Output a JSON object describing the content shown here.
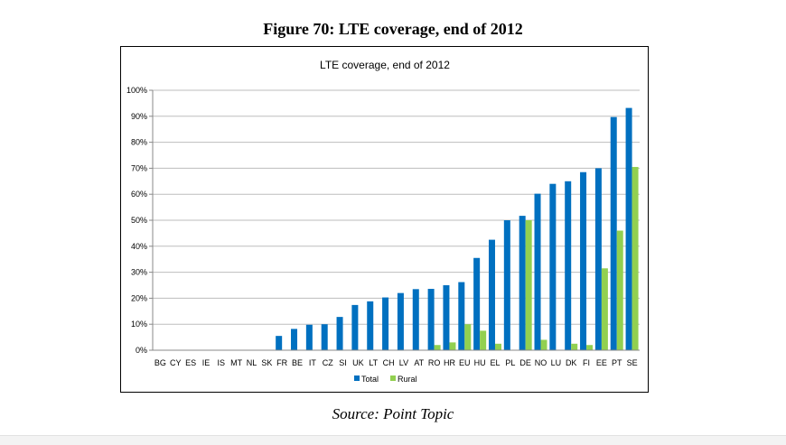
{
  "figure_title": "Figure 70: LTE coverage, end of 2012",
  "source": "Source: Point Topic",
  "chart_data": {
    "type": "bar",
    "title": "LTE coverage, end of 2012",
    "xlabel": "",
    "ylabel": "",
    "ylim": [
      0,
      100
    ],
    "y_ticks": [
      "0%",
      "10%",
      "20%",
      "30%",
      "40%",
      "50%",
      "60%",
      "70%",
      "80%",
      "90%",
      "100%"
    ],
    "grid": true,
    "legend_position": "bottom",
    "categories": [
      "BG",
      "CY",
      "ES",
      "IE",
      "IS",
      "MT",
      "NL",
      "SK",
      "FR",
      "BE",
      "IT",
      "CZ",
      "SI",
      "UK",
      "LT",
      "CH",
      "LV",
      "AT",
      "RO",
      "HR",
      "EU",
      "HU",
      "EL",
      "PL",
      "DE",
      "NO",
      "LU",
      "DK",
      "FI",
      "EE",
      "PT",
      "SE"
    ],
    "series": [
      {
        "name": "Total",
        "color": "#0070c0",
        "values": [
          0,
          0,
          0,
          0,
          0,
          0,
          0,
          0,
          5.5,
          8.2,
          9.8,
          10.0,
          12.8,
          17.4,
          18.8,
          20.3,
          22.0,
          23.5,
          23.6,
          25.0,
          26.2,
          35.5,
          42.5,
          50.0,
          51.7,
          60.2,
          64.0,
          65.0,
          68.5,
          70.0,
          89.7,
          93.2
        ]
      },
      {
        "name": "Rural",
        "color": "#92d050",
        "values": [
          0,
          0,
          0,
          0,
          0,
          0,
          0,
          0,
          0,
          0,
          0,
          0,
          0,
          0,
          0,
          0,
          0,
          0,
          2.0,
          3.0,
          10.0,
          7.5,
          2.5,
          0,
          50.0,
          4.0,
          0,
          2.5,
          2.0,
          31.5,
          46.0,
          70.5
        ]
      }
    ]
  }
}
